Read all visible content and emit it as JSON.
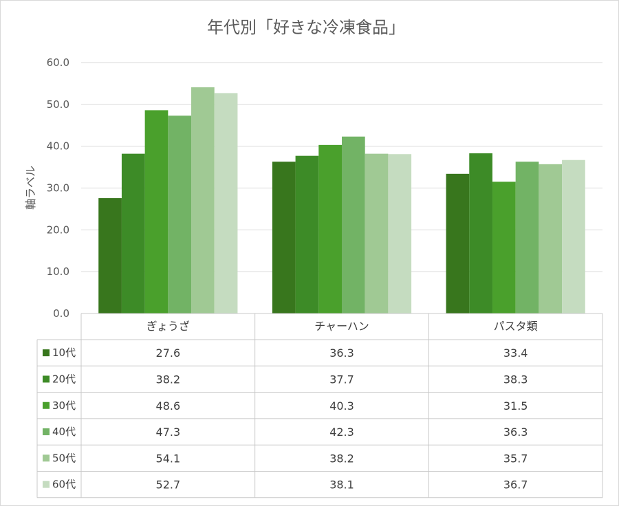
{
  "chart_data": {
    "type": "bar",
    "title": "年代別「好きな冷凍食品」",
    "ylabel": "軸ラベル",
    "xlabel": "",
    "categories": [
      "ぎょうざ",
      "チャーハン",
      "パスタ類"
    ],
    "ylim": [
      0,
      60
    ],
    "yticks": [
      "0.0",
      "10.0",
      "20.0",
      "30.0",
      "40.0",
      "50.0",
      "60.0"
    ],
    "grid": true,
    "legend": "data-table",
    "series": [
      {
        "name": "10代",
        "color": "#38761d",
        "values": [
          27.6,
          36.3,
          33.4
        ],
        "labels": [
          "27.6",
          "36.3",
          "33.4"
        ]
      },
      {
        "name": "20代",
        "color": "#3d8b27",
        "values": [
          38.2,
          37.7,
          38.3
        ],
        "labels": [
          "38.2",
          "37.7",
          "38.3"
        ]
      },
      {
        "name": "30代",
        "color": "#4aa02c",
        "values": [
          48.6,
          40.3,
          31.5
        ],
        "labels": [
          "48.6",
          "40.3",
          "31.5"
        ]
      },
      {
        "name": "40代",
        "color": "#72b365",
        "values": [
          47.3,
          42.3,
          36.3
        ],
        "labels": [
          "47.3",
          "42.3",
          "36.3"
        ]
      },
      {
        "name": "50代",
        "color": "#a0c994",
        "values": [
          54.1,
          38.2,
          35.7
        ],
        "labels": [
          "54.1",
          "38.2",
          "35.7"
        ]
      },
      {
        "name": "60代",
        "color": "#c5dcc0",
        "values": [
          52.7,
          38.1,
          36.7
        ],
        "labels": [
          "52.7",
          "38.1",
          "36.7"
        ]
      }
    ]
  }
}
